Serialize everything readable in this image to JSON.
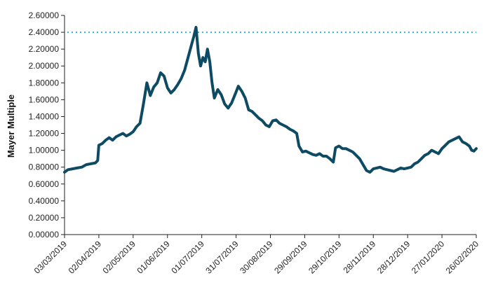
{
  "chart_data": {
    "type": "line",
    "ylabel": "Mayer Multiple",
    "xlabel": "",
    "ylim": [
      0,
      2.6
    ],
    "xlim": [
      "2019-03-03",
      "2020-02-26"
    ],
    "y_ticks": [
      "0.00000",
      "0.20000",
      "0.40000",
      "0.60000",
      "0.80000",
      "1.00000",
      "1.20000",
      "1.40000",
      "1.60000",
      "1.80000",
      "2.00000",
      "2.20000",
      "2.40000",
      "2.60000"
    ],
    "x_ticks": [
      "03/03/2019",
      "02/04/2019",
      "02/05/2019",
      "01/06/2019",
      "01/07/2019",
      "31/07/2019",
      "30/08/2019",
      "29/09/2019",
      "29/10/2019",
      "28/11/2019",
      "28/12/2019",
      "27/01/2020",
      "26/02/2020"
    ],
    "grid": false,
    "threshold": {
      "value": 2.4,
      "color": "#29b6d8",
      "style": "dotted"
    },
    "series": [
      {
        "color": "#0d4a63",
        "points": [
          [
            "2019-03-03",
            0.74
          ],
          [
            "2019-03-06",
            0.77
          ],
          [
            "2019-03-10",
            0.78
          ],
          [
            "2019-03-14",
            0.79
          ],
          [
            "2019-03-18",
            0.8
          ],
          [
            "2019-03-22",
            0.83
          ],
          [
            "2019-03-26",
            0.84
          ],
          [
            "2019-03-30",
            0.85
          ],
          [
            "2019-04-01",
            0.88
          ],
          [
            "2019-04-02",
            1.06
          ],
          [
            "2019-04-05",
            1.08
          ],
          [
            "2019-04-08",
            1.12
          ],
          [
            "2019-04-11",
            1.15
          ],
          [
            "2019-04-14",
            1.12
          ],
          [
            "2019-04-17",
            1.16
          ],
          [
            "2019-04-20",
            1.18
          ],
          [
            "2019-04-23",
            1.2
          ],
          [
            "2019-04-26",
            1.17
          ],
          [
            "2019-04-29",
            1.19
          ],
          [
            "2019-05-02",
            1.22
          ],
          [
            "2019-05-05",
            1.28
          ],
          [
            "2019-05-08",
            1.32
          ],
          [
            "2019-05-11",
            1.55
          ],
          [
            "2019-05-14",
            1.8
          ],
          [
            "2019-05-17",
            1.65
          ],
          [
            "2019-05-20",
            1.75
          ],
          [
            "2019-05-23",
            1.8
          ],
          [
            "2019-05-26",
            1.92
          ],
          [
            "2019-05-29",
            1.88
          ],
          [
            "2019-06-01",
            1.74
          ],
          [
            "2019-06-04",
            1.68
          ],
          [
            "2019-06-07",
            1.72
          ],
          [
            "2019-06-10",
            1.78
          ],
          [
            "2019-06-13",
            1.85
          ],
          [
            "2019-06-16",
            1.95
          ],
          [
            "2019-06-19",
            2.1
          ],
          [
            "2019-06-22",
            2.25
          ],
          [
            "2019-06-24",
            2.35
          ],
          [
            "2019-06-26",
            2.46
          ],
          [
            "2019-06-28",
            2.15
          ],
          [
            "2019-06-30",
            2.0
          ],
          [
            "2019-07-02",
            2.1
          ],
          [
            "2019-07-04",
            2.05
          ],
          [
            "2019-07-06",
            2.2
          ],
          [
            "2019-07-08",
            2.05
          ],
          [
            "2019-07-10",
            1.8
          ],
          [
            "2019-07-12",
            1.62
          ],
          [
            "2019-07-15",
            1.72
          ],
          [
            "2019-07-18",
            1.66
          ],
          [
            "2019-07-21",
            1.55
          ],
          [
            "2019-07-24",
            1.5
          ],
          [
            "2019-07-27",
            1.56
          ],
          [
            "2019-07-30",
            1.66
          ],
          [
            "2019-08-02",
            1.76
          ],
          [
            "2019-08-05",
            1.7
          ],
          [
            "2019-08-08",
            1.62
          ],
          [
            "2019-08-11",
            1.48
          ],
          [
            "2019-08-14",
            1.46
          ],
          [
            "2019-08-17",
            1.42
          ],
          [
            "2019-08-20",
            1.38
          ],
          [
            "2019-08-23",
            1.35
          ],
          [
            "2019-08-26",
            1.3
          ],
          [
            "2019-08-29",
            1.28
          ],
          [
            "2019-09-01",
            1.35
          ],
          [
            "2019-09-04",
            1.36
          ],
          [
            "2019-09-07",
            1.32
          ],
          [
            "2019-09-10",
            1.3
          ],
          [
            "2019-09-13",
            1.28
          ],
          [
            "2019-09-16",
            1.25
          ],
          [
            "2019-09-19",
            1.23
          ],
          [
            "2019-09-22",
            1.2
          ],
          [
            "2019-09-24",
            1.05
          ],
          [
            "2019-09-27",
            0.98
          ],
          [
            "2019-09-30",
            0.99
          ],
          [
            "2019-10-03",
            0.97
          ],
          [
            "2019-10-06",
            0.95
          ],
          [
            "2019-10-09",
            0.94
          ],
          [
            "2019-10-12",
            0.96
          ],
          [
            "2019-10-15",
            0.93
          ],
          [
            "2019-10-18",
            0.93
          ],
          [
            "2019-10-21",
            0.9
          ],
          [
            "2019-10-24",
            0.86
          ],
          [
            "2019-10-26",
            1.03
          ],
          [
            "2019-10-29",
            1.05
          ],
          [
            "2019-11-01",
            1.02
          ],
          [
            "2019-11-04",
            1.02
          ],
          [
            "2019-11-07",
            1.0
          ],
          [
            "2019-11-10",
            0.98
          ],
          [
            "2019-11-13",
            0.94
          ],
          [
            "2019-11-16",
            0.9
          ],
          [
            "2019-11-19",
            0.83
          ],
          [
            "2019-11-22",
            0.76
          ],
          [
            "2019-11-25",
            0.74
          ],
          [
            "2019-11-28",
            0.78
          ],
          [
            "2019-12-01",
            0.79
          ],
          [
            "2019-12-04",
            0.8
          ],
          [
            "2019-12-07",
            0.78
          ],
          [
            "2019-12-10",
            0.77
          ],
          [
            "2019-12-13",
            0.76
          ],
          [
            "2019-12-16",
            0.75
          ],
          [
            "2019-12-19",
            0.77
          ],
          [
            "2019-12-22",
            0.79
          ],
          [
            "2019-12-25",
            0.78
          ],
          [
            "2019-12-28",
            0.79
          ],
          [
            "2019-12-31",
            0.8
          ],
          [
            "2020-01-03",
            0.84
          ],
          [
            "2020-01-06",
            0.86
          ],
          [
            "2020-01-09",
            0.9
          ],
          [
            "2020-01-12",
            0.94
          ],
          [
            "2020-01-15",
            0.96
          ],
          [
            "2020-01-18",
            1.0
          ],
          [
            "2020-01-21",
            0.98
          ],
          [
            "2020-01-24",
            0.96
          ],
          [
            "2020-01-27",
            1.02
          ],
          [
            "2020-01-30",
            1.06
          ],
          [
            "2020-02-02",
            1.1
          ],
          [
            "2020-02-05",
            1.12
          ],
          [
            "2020-02-08",
            1.14
          ],
          [
            "2020-02-11",
            1.16
          ],
          [
            "2020-02-14",
            1.1
          ],
          [
            "2020-02-17",
            1.08
          ],
          [
            "2020-02-20",
            1.05
          ],
          [
            "2020-02-22",
            1.0
          ],
          [
            "2020-02-24",
            0.99
          ],
          [
            "2020-02-26",
            1.02
          ]
        ]
      }
    ]
  }
}
